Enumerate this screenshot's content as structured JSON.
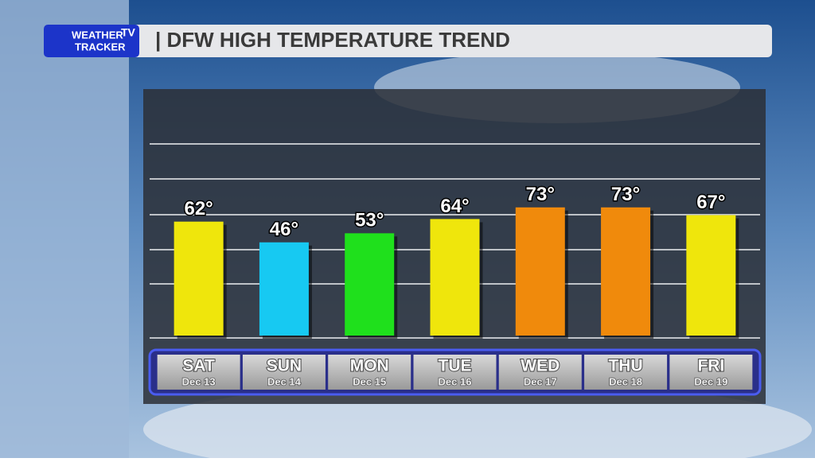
{
  "logo": {
    "line1": "WEATHER",
    "badge": "TV",
    "line2": "TRACKER"
  },
  "chart_data": {
    "type": "bar",
    "title": "| DFW HIGH TEMPERATURE TREND",
    "categories": [
      "SAT",
      "SUN",
      "MON",
      "TUE",
      "WED",
      "THU",
      "FRI"
    ],
    "dates": [
      "Dec 13",
      "Dec 14",
      "Dec 15",
      "Dec 16",
      "Dec 17",
      "Dec 18",
      "Dec 19"
    ],
    "values": [
      62,
      46,
      53,
      64,
      73,
      73,
      67
    ],
    "value_labels": [
      "62°",
      "46°",
      "53°",
      "64°",
      "73°",
      "73°",
      "67°"
    ],
    "colors": [
      "#efe60c",
      "#17c9f2",
      "#1fe01c",
      "#efe60c",
      "#f08a0c",
      "#f08a0c",
      "#efe60c"
    ],
    "ylim": [
      -26,
      122
    ]
  }
}
